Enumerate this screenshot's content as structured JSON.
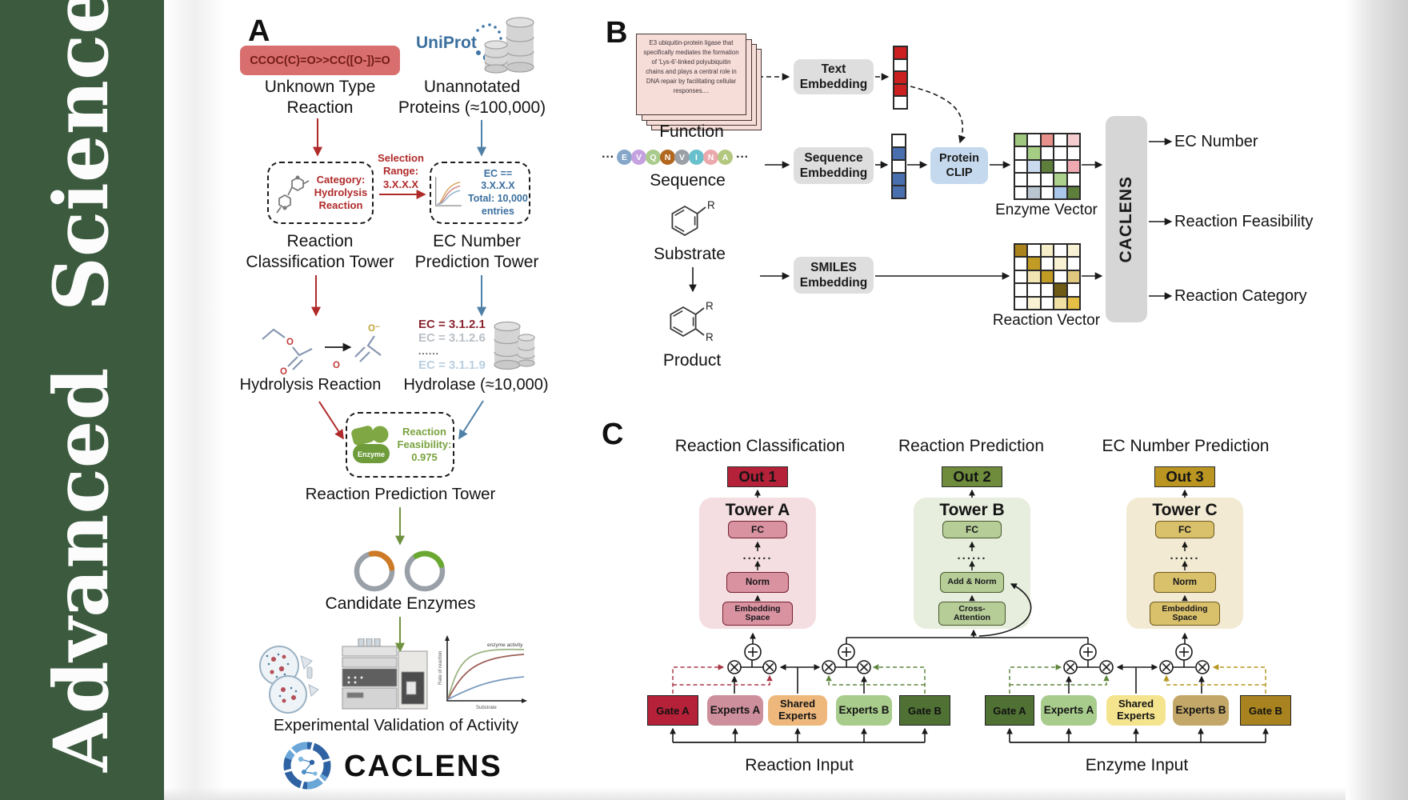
{
  "banner": {
    "text": "Advanced Science",
    "bg_color": "#3b5a3e"
  },
  "colors": {
    "crimson": "#b52138",
    "dark_green": "#507134",
    "gold_gate": "#a8831f",
    "tower_a_bg": "#f5dee2",
    "tower_b_bg": "#e7eedd",
    "tower_c_bg": "#f2ead2",
    "red_arrow": "#b02a2a",
    "blue_arrow": "#4f81a8",
    "green_arrow": "#6f923f"
  },
  "panel_a": {
    "label": "A",
    "smiles": "CCOC(C)=O>>CC([O-])=O",
    "unknown_line1": "Unknown Type",
    "unknown_line2": "Reaction",
    "uniprot": "UniProt",
    "unannotated_line1": "Unannotated",
    "unannotated_line2": "Proteins (≈100,000)",
    "category_line1": "Category:",
    "category_line2": "Hydrolysis",
    "category_line3": "Reaction",
    "selection_line1": "Selection",
    "selection_line2": "Range:",
    "selection_line3": "3.X.X.X",
    "ec_box_line1": "EC == 3.X.X.X",
    "ec_box_line2": "Total: 10,000",
    "ec_box_line3": "entries",
    "rct_line1": "Reaction",
    "rct_line2": "Classification Tower",
    "ecpt_line1": "EC Number",
    "ecpt_line2": "Prediction Tower",
    "hydrolysis_label": "Hydrolysis Reaction",
    "ec_list": [
      "EC = 3.1.2.1",
      "EC = 3.1.2.6",
      "......",
      "EC = 3.1.1.9"
    ],
    "hydrolase_label": "Hydrolase (≈10,000)",
    "enzyme_badge": "Enzyme",
    "feasibility_line1": "Reaction",
    "feasibility_line2": "Feasibility:",
    "feasibility_line3": "0.975",
    "rpt_label": "Reaction Prediction Tower",
    "candidate_label": "Candidate Enzymes",
    "experimental_label": "Experimental Validation of Activity",
    "activity_plot": {
      "ylabel": "Rate of reaction",
      "xlabel": "Substrate",
      "annotation": "enzyme activity"
    },
    "logo_text": "CACLENS",
    "atom_o": "O",
    "atom_o_minus": "O⁻"
  },
  "panel_b": {
    "label": "B",
    "function_card": "E3 ubiquitin-protein ligase that specifically mediates the formation of 'Lys-6'-linked polyubiquitin chains and plays a central role in DNA repair by facilitating cellular responses....",
    "function_label": "Function",
    "ellipsis": "···",
    "sequence_letters": [
      "E",
      "V",
      "Q",
      "N",
      "V",
      "I",
      "N",
      "A"
    ],
    "sequence_colors": [
      "#84a7c9",
      "#c5a1e0",
      "#a9cb8b",
      "#b2671f",
      "#9b9fa6",
      "#68c0cc",
      "#eba9ad",
      "#b3c77f"
    ],
    "sequence_label": "Sequence",
    "substrate_label": "Substrate",
    "product_label": "Product",
    "r_group": "R",
    "text_embedding": [
      "Text",
      "Embedding"
    ],
    "sequence_embedding": [
      "Sequence",
      "Embedding"
    ],
    "smiles_embedding": [
      "SMILES",
      "Embedding"
    ],
    "protein_clip": [
      "Protein",
      "CLIP"
    ],
    "text_vector_cells": [
      "#cc2020",
      "#ffffff",
      "#cc2020",
      "#cc2020",
      "#ffffff"
    ],
    "sequence_vector_cells": [
      "#ffffff",
      "#4a6fae",
      "#ffffff",
      "#4a6fae",
      "#4a6fae"
    ],
    "enzyme_grid": [
      [
        "#9fc87e",
        "#ffffff",
        "#e8908c",
        "#ffffff",
        "#f4cdd1"
      ],
      [
        "#ffffff",
        "#a6cd84",
        "#ffffff",
        "#ffffff",
        "#ffffff"
      ],
      [
        "#ffffff",
        "#c9daee",
        "#5d7f3b",
        "#ffffff",
        "#efaab1"
      ],
      [
        "#ffffff",
        "#ffffff",
        "#ffffff",
        "#abd18c",
        "#ffffff"
      ],
      [
        "#ffffff",
        "#bac5d2",
        "#ffffff",
        "#abc8ea",
        "#5d7f3b"
      ]
    ],
    "reaction_grid": [
      [
        "#ab831c",
        "#ffffff",
        "#f6eec9",
        "#ffffff",
        "#f8f1d4"
      ],
      [
        "#ffffff",
        "#c29b25",
        "#ffffff",
        "#f8f1d4",
        "#ffffff"
      ],
      [
        "#ffffff",
        "#f2e5b4",
        "#c29b25",
        "#ffffff",
        "#dfc87e"
      ],
      [
        "#ffffff",
        "#ffffff",
        "#ffffff",
        "#6e5a14",
        "#ffffff"
      ],
      [
        "#ffffff",
        "#f8f1d4",
        "#ffffff",
        "#f1e0a4",
        "#e5be45"
      ]
    ],
    "enzyme_vector_label": "Enzyme Vector",
    "reaction_vector_label": "Reaction Vector",
    "caclens_label": "CACLENS",
    "outputs": [
      "EC Number",
      "Reaction Feasibility",
      "Reaction Category"
    ]
  },
  "panel_c": {
    "label": "C",
    "titles": [
      "Reaction Classification",
      "Reaction Prediction",
      "EC Number Prediction"
    ],
    "outs": [
      "Out 1",
      "Out 2",
      "Out 3"
    ],
    "towers": [
      {
        "name": "Tower A",
        "fc": "FC",
        "dots": "......",
        "mid": "Norm",
        "bottom": [
          "Embedding",
          "Space"
        ]
      },
      {
        "name": "Tower B",
        "fc": "FC",
        "dots": "......",
        "mid": "Add & Norm",
        "bottom": [
          "Cross-",
          "Attention"
        ]
      },
      {
        "name": "Tower C",
        "fc": "FC",
        "dots": "......",
        "mid": "Norm",
        "bottom": [
          "Embedding",
          "Space"
        ]
      }
    ],
    "modules": [
      {
        "gate_a": "Gate A",
        "experts_a": "Experts A",
        "shared": [
          "Shared",
          "Experts"
        ],
        "experts_b": "Experts B",
        "gate_b": "Gate B",
        "input": "Reaction Input"
      },
      {
        "gate_a": "Gate A",
        "experts_a": "Experts A",
        "shared": [
          "Shared",
          "Experts"
        ],
        "experts_b": "Experts B",
        "gate_b": "Gate B",
        "input": "Enzyme Input"
      }
    ]
  }
}
